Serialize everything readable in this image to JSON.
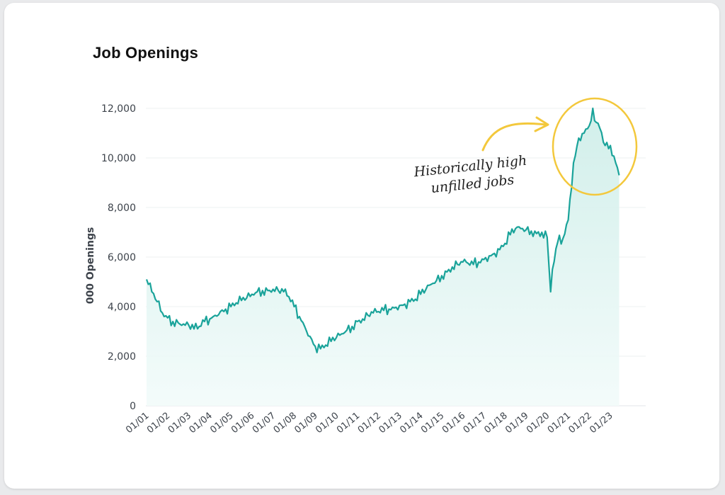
{
  "chart_data": {
    "type": "area",
    "title": "Job Openings",
    "xlabel": "",
    "ylabel": "000 Openings",
    "ylim": [
      0,
      12000
    ],
    "yticks": [
      0,
      2000,
      4000,
      6000,
      8000,
      10000,
      12000
    ],
    "ytick_labels": [
      "0",
      "2,000",
      "4,000",
      "6,000",
      "8,000",
      "10,000",
      "12,000"
    ],
    "xtick_labels": [
      "01/01",
      "01/02",
      "01/03",
      "01/04",
      "01/05",
      "01/06",
      "01/07",
      "01/08",
      "01/09",
      "01/10",
      "01/11",
      "01/12",
      "01/13",
      "01/14",
      "01/15",
      "01/16",
      "01/17",
      "01/18",
      "01/19",
      "01/20",
      "01/21",
      "01/22",
      "01/23"
    ],
    "grid": true,
    "colors": {
      "line": "#1aa39a",
      "fill": "#d7f2ef",
      "highlight": "#f3c83c"
    },
    "annotation": {
      "text_lines": [
        "Historically high",
        "unfilled jobs"
      ]
    },
    "series": [
      {
        "x": [
          "2001-01",
          "2001-04",
          "2001-07",
          "2001-10",
          "2002-01",
          "2002-04",
          "2002-07",
          "2002-10",
          "2003-01",
          "2003-04",
          "2003-07",
          "2003-10",
          "2004-01",
          "2004-04",
          "2004-07",
          "2004-10",
          "2005-01",
          "2005-04",
          "2005-07",
          "2005-10",
          "2006-01",
          "2006-04",
          "2006-07",
          "2006-10",
          "2007-01",
          "2007-04",
          "2007-07",
          "2007-10",
          "2008-01",
          "2008-04",
          "2008-07",
          "2008-10",
          "2009-01",
          "2009-04",
          "2009-07",
          "2009-10",
          "2010-01",
          "2010-04",
          "2010-07",
          "2010-10",
          "2011-01",
          "2011-04",
          "2011-07",
          "2011-10",
          "2012-01",
          "2012-04",
          "2012-07",
          "2012-10",
          "2013-01",
          "2013-04",
          "2013-07",
          "2013-10",
          "2014-01",
          "2014-04",
          "2014-07",
          "2014-10",
          "2015-01",
          "2015-04",
          "2015-07",
          "2015-10",
          "2016-01",
          "2016-04",
          "2016-07",
          "2016-10",
          "2017-01",
          "2017-04",
          "2017-07",
          "2017-10",
          "2018-01",
          "2018-04",
          "2018-07",
          "2018-10",
          "2019-01",
          "2019-04",
          "2019-07",
          "2019-10",
          "2020-01",
          "2020-03",
          "2020-04",
          "2020-07",
          "2020-10",
          "2021-01",
          "2021-04",
          "2021-07",
          "2021-10",
          "2022-01",
          "2022-03",
          "2022-04",
          "2022-07",
          "2022-10",
          "2023-01",
          "2023-04",
          "2023-06"
        ],
        "values": [
          5100,
          4600,
          4200,
          3750,
          3550,
          3400,
          3350,
          3300,
          3250,
          3100,
          3200,
          3400,
          3500,
          3650,
          3800,
          3900,
          4000,
          4150,
          4250,
          4350,
          4500,
          4600,
          4650,
          4650,
          4700,
          4650,
          4600,
          4400,
          4000,
          3600,
          3200,
          2800,
          2400,
          2300,
          2450,
          2600,
          2750,
          2900,
          3050,
          3200,
          3400,
          3500,
          3650,
          3750,
          3800,
          3850,
          3900,
          3950,
          4050,
          4100,
          4200,
          4300,
          4500,
          4700,
          4900,
          5050,
          5250,
          5400,
          5600,
          5700,
          5800,
          5750,
          5700,
          5800,
          5900,
          6050,
          6150,
          6300,
          6550,
          6900,
          7150,
          7150,
          7100,
          7050,
          6950,
          7000,
          6800,
          4600,
          5500,
          6600,
          6750,
          7500,
          9800,
          10800,
          11000,
          11300,
          12000,
          11500,
          11200,
          10500,
          10500,
          9800,
          9300
        ]
      }
    ]
  }
}
